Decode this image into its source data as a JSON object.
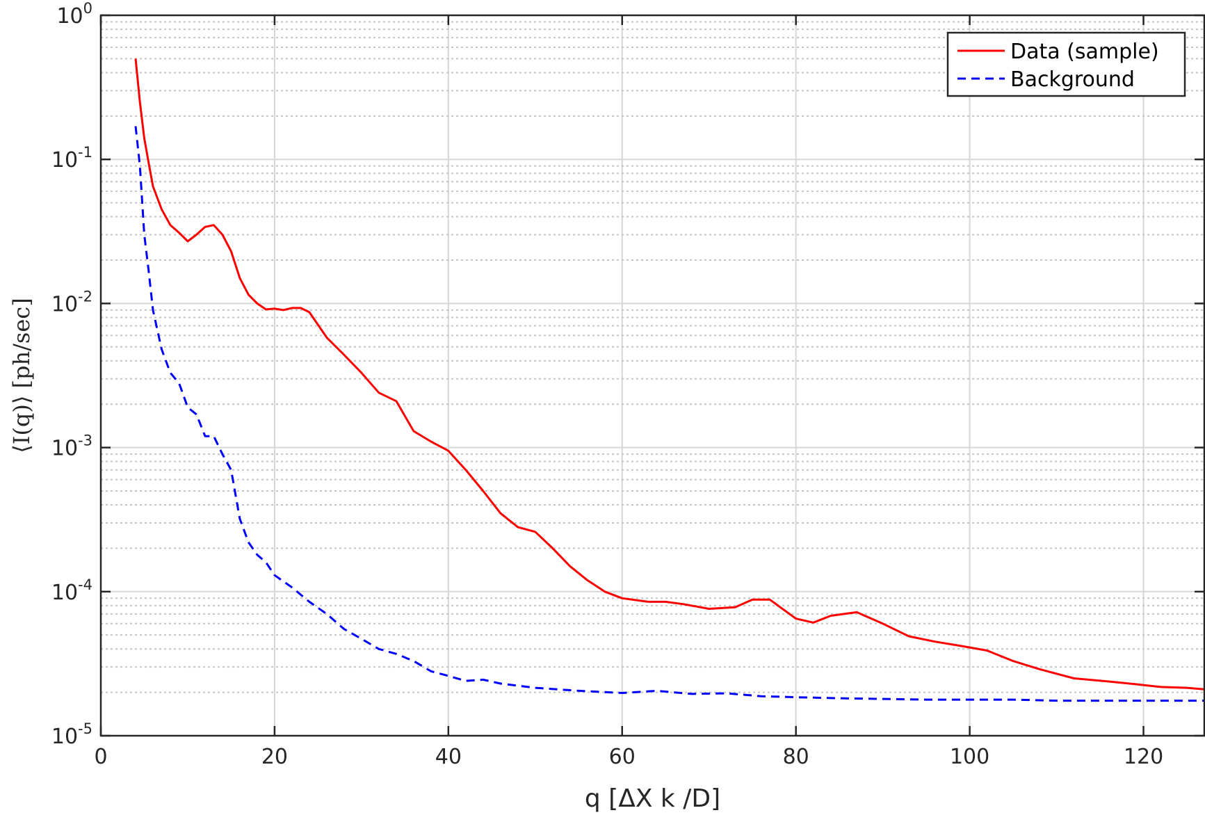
{
  "chart_data": {
    "type": "line",
    "title": "",
    "xlabel": "q [ΔX k /D]",
    "ylabel": "⟨I(q)⟩ [ph/sec]",
    "xlim": [
      0,
      127
    ],
    "ylim": [
      1e-05,
      1
    ],
    "yscale": "log",
    "grid": true,
    "legend_position": "top-right",
    "x_ticks": [
      "0",
      "20",
      "40",
      "60",
      "80",
      "100",
      "120"
    ],
    "y_ticks": [
      {
        "base": "10",
        "exp": "-5"
      },
      {
        "base": "10",
        "exp": "-4"
      },
      {
        "base": "10",
        "exp": "-3"
      },
      {
        "base": "10",
        "exp": "-2"
      },
      {
        "base": "10",
        "exp": "-1"
      },
      {
        "base": "10",
        "exp": "0"
      }
    ],
    "series": [
      {
        "name": "Data (sample)",
        "color": "#ff0000",
        "style": "solid",
        "x": [
          4,
          4.5,
          5,
          5.5,
          6,
          7,
          8,
          9,
          10,
          11,
          12,
          13,
          14,
          15,
          16,
          17,
          18,
          19,
          20,
          21,
          22,
          23,
          24,
          26,
          28,
          30,
          32,
          34,
          36,
          38,
          40,
          42,
          44,
          46,
          48,
          50,
          52,
          54,
          56,
          58,
          60,
          63,
          65,
          67,
          70,
          73,
          75,
          77,
          80,
          82,
          84,
          87,
          90,
          93,
          96,
          99,
          102,
          105,
          108,
          112,
          116,
          119,
          122,
          125,
          127
        ],
        "y": [
          0.5,
          0.25,
          0.14,
          0.095,
          0.065,
          0.045,
          0.035,
          0.031,
          0.027,
          0.03,
          0.034,
          0.035,
          0.03,
          0.023,
          0.015,
          0.0115,
          0.01,
          0.0091,
          0.0092,
          0.009,
          0.0093,
          0.0093,
          0.0087,
          0.0058,
          0.0044,
          0.0033,
          0.0024,
          0.0021,
          0.0013,
          0.0011,
          0.00095,
          0.0007,
          0.0005,
          0.00035,
          0.00028,
          0.00026,
          0.0002,
          0.00015,
          0.00012,
          0.0001,
          9e-05,
          8.5e-05,
          8.5e-05,
          8.2e-05,
          7.6e-05,
          7.8e-05,
          8.8e-05,
          8.8e-05,
          6.5e-05,
          6.1e-05,
          6.8e-05,
          7.2e-05,
          6e-05,
          4.9e-05,
          4.5e-05,
          4.2e-05,
          3.9e-05,
          3.3e-05,
          2.9e-05,
          2.5e-05,
          2.38e-05,
          2.28e-05,
          2.18e-05,
          2.15e-05,
          2.1e-05
        ]
      },
      {
        "name": "Background",
        "color": "#0000ff",
        "style": "dashed",
        "x": [
          4,
          4.5,
          5,
          5.5,
          6,
          7,
          8,
          9,
          10,
          11,
          12,
          13,
          14,
          15,
          16,
          17,
          18,
          19,
          20,
          22,
          24,
          26,
          28,
          30,
          32,
          34,
          36,
          38,
          40,
          42,
          44,
          46,
          50,
          55,
          60,
          64,
          68,
          72,
          76,
          80,
          85,
          90,
          95,
          100,
          105,
          110,
          115,
          120,
          127
        ],
        "y": [
          0.17,
          0.09,
          0.03,
          0.017,
          0.009,
          0.0048,
          0.0033,
          0.0028,
          0.0019,
          0.0017,
          0.0012,
          0.0012,
          0.0009,
          0.0007,
          0.00032,
          0.00022,
          0.00018,
          0.00016,
          0.00013,
          0.000107,
          8.5e-05,
          7e-05,
          5.5e-05,
          4.7e-05,
          4e-05,
          3.7e-05,
          3.3e-05,
          2.8e-05,
          2.6e-05,
          2.4e-05,
          2.45e-05,
          2.3e-05,
          2.15e-05,
          2.05e-05,
          1.98e-05,
          2.05e-05,
          1.95e-05,
          1.97e-05,
          1.88e-05,
          1.85e-05,
          1.82e-05,
          1.8e-05,
          1.78e-05,
          1.78e-05,
          1.78e-05,
          1.75e-05,
          1.75e-05,
          1.75e-05,
          1.75e-05
        ]
      }
    ]
  }
}
